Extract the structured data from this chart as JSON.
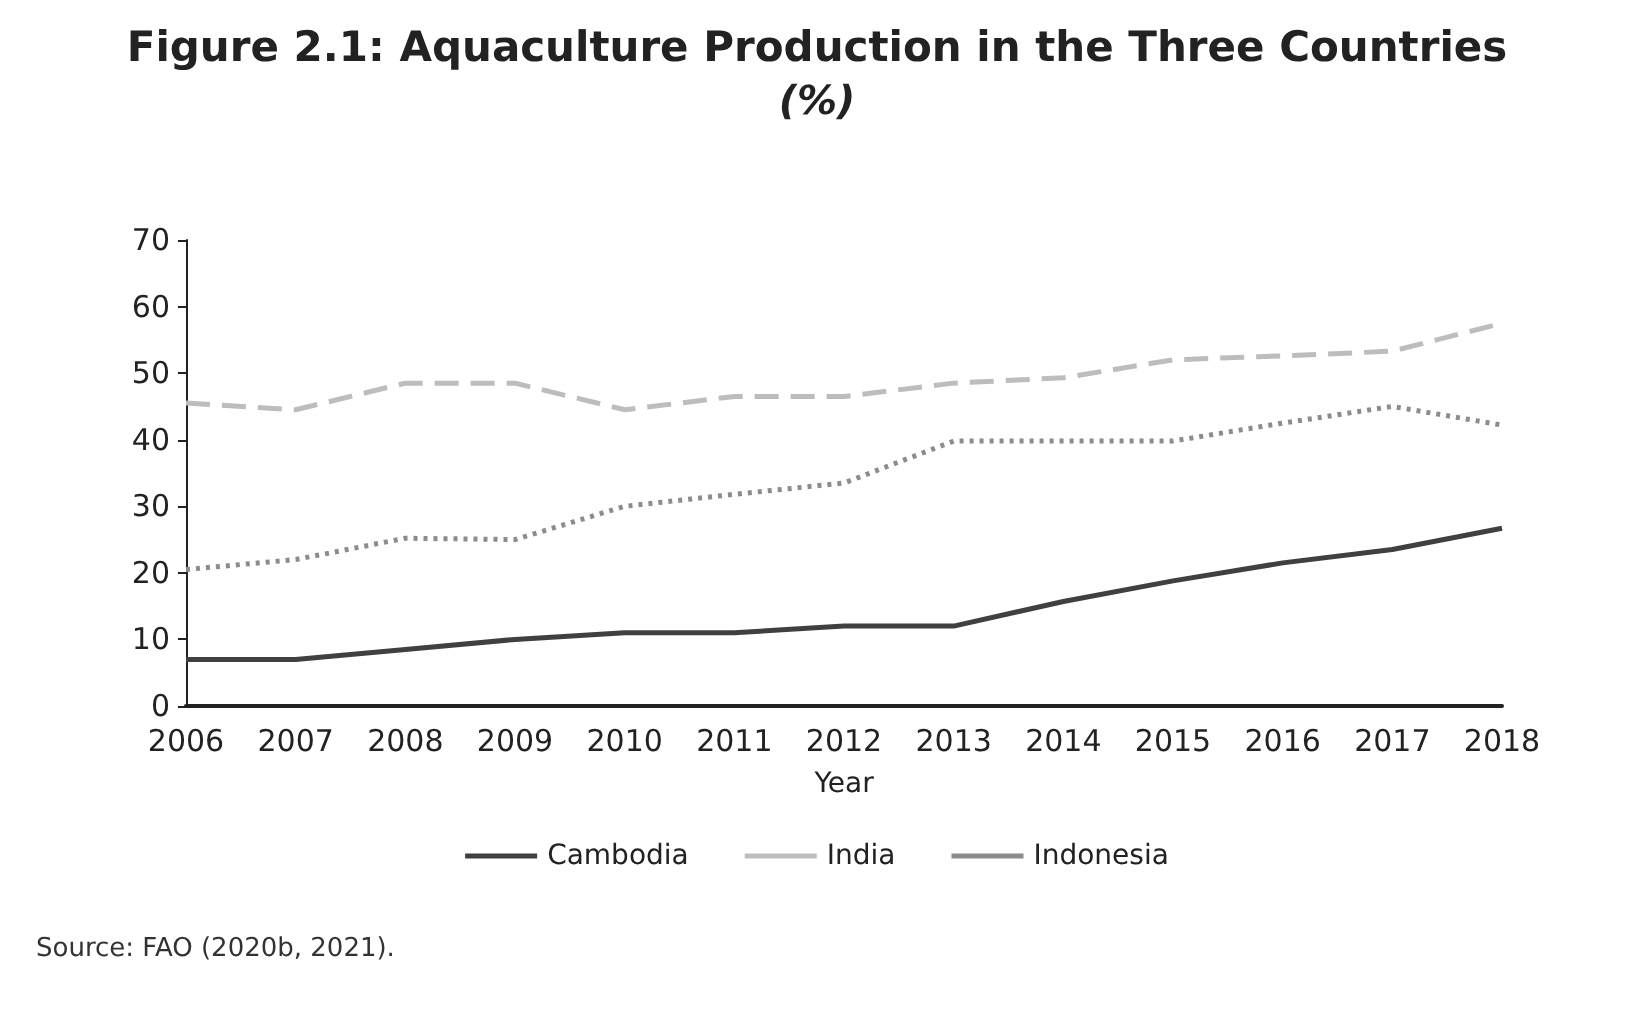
{
  "chart_data": {
    "type": "line",
    "title": "Figure 2.1: Aquaculture Production in the Three Countries",
    "subtitle": "(%)",
    "xlabel": "Year",
    "categories": [
      "2006",
      "2007",
      "2008",
      "2009",
      "2010",
      "2011",
      "2012",
      "2013",
      "2014",
      "2015",
      "2016",
      "2017",
      "2018"
    ],
    "series": [
      {
        "name": "Cambodia",
        "color": "#404040",
        "line_style": "solid",
        "values": [
          7,
          7,
          8.5,
          10,
          11,
          11,
          12,
          12,
          15.7,
          18.8,
          21.5,
          23.5,
          26.7
        ]
      },
      {
        "name": "India",
        "color": "#bdbdbd",
        "line_style": "dashed",
        "values": [
          45.5,
          44.5,
          48.5,
          48.5,
          44.5,
          46.5,
          46.5,
          48.5,
          49.3,
          52,
          52.6,
          53.3,
          57.5
        ]
      },
      {
        "name": "Indonesia",
        "color": "#8c8c8c",
        "line_style": "dotted",
        "values": [
          20.5,
          22,
          25.2,
          25,
          30,
          31.8,
          33.5,
          39.8,
          39.8,
          39.8,
          42.5,
          45,
          42.2
        ]
      }
    ],
    "ylim": [
      0,
      70
    ],
    "yticks": [
      0,
      10,
      20,
      30,
      40,
      50,
      60,
      70
    ],
    "grid": false,
    "legend": "bottom",
    "marker": "none",
    "annotations": [
      "Source: FAO (2020b, 2021)."
    ]
  }
}
